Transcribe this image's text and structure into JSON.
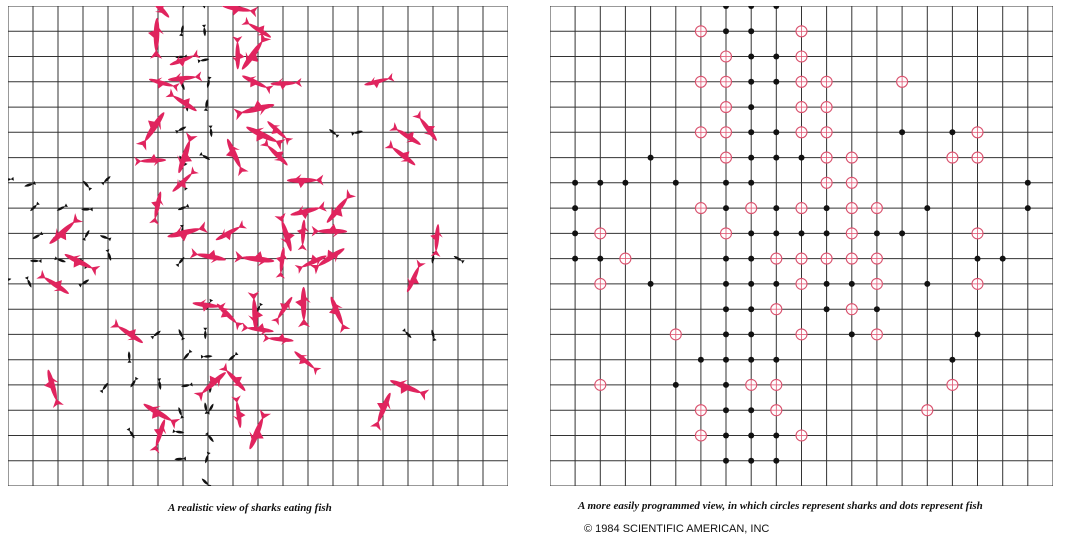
{
  "figure": {
    "left_caption": "A realistic view of sharks eating fish",
    "right_caption": "A more easily programmed view, in which circles represent sharks and dots represent fish",
    "credit": "© 1984 SCIENTIFIC AMERICAN, INC"
  },
  "colors": {
    "shark": "#e0245e",
    "fish": "#111111",
    "grid": "#333333",
    "circle": "#d9536f"
  },
  "icons": {
    "shark": "shark-icon",
    "fish": "fish-icon",
    "shark_marker": "circle-marker",
    "fish_marker": "dot-marker"
  },
  "grid": {
    "columns": 19,
    "rows": 18
  }
}
